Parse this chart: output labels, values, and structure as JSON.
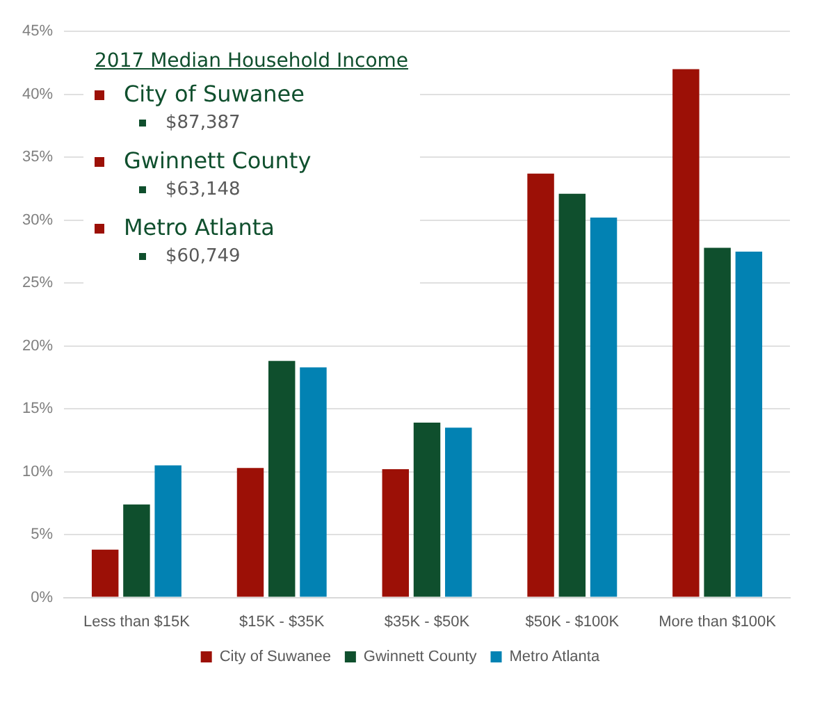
{
  "chart_data": {
    "type": "bar",
    "categories": [
      "Less than $15K",
      "$15K - $35K",
      "$35K - $50K",
      "$50K - $100K",
      "More than $100K"
    ],
    "series": [
      {
        "name": "City of Suwanee",
        "color": "#9c1006",
        "values": [
          3.8,
          10.3,
          10.2,
          33.7,
          42.0
        ]
      },
      {
        "name": "Gwinnett County",
        "color": "#0f4f2d",
        "values": [
          7.4,
          18.8,
          13.9,
          32.1,
          27.8
        ]
      },
      {
        "name": "Metro Atlanta",
        "color": "#0282b3",
        "values": [
          10.5,
          18.3,
          13.5,
          30.2,
          27.5
        ]
      }
    ],
    "ylim": [
      0,
      45
    ],
    "yticks": [
      {
        "value": 0,
        "label": "0%"
      },
      {
        "value": 5,
        "label": "5%"
      },
      {
        "value": 10,
        "label": "10%"
      },
      {
        "value": 15,
        "label": "15%"
      },
      {
        "value": 20,
        "label": "20%"
      },
      {
        "value": 25,
        "label": "25%"
      },
      {
        "value": 30,
        "label": "30%"
      },
      {
        "value": 35,
        "label": "35%"
      },
      {
        "value": 40,
        "label": "40%"
      },
      {
        "value": 45,
        "label": "45%"
      }
    ],
    "grid": "y",
    "legend": "bottom",
    "annotations": [
      "2017 Median Household Income",
      "City of Suwanee",
      "$87,387",
      "Gwinnett County",
      "$63,148",
      "Metro Atlanta",
      "$60,749"
    ]
  }
}
